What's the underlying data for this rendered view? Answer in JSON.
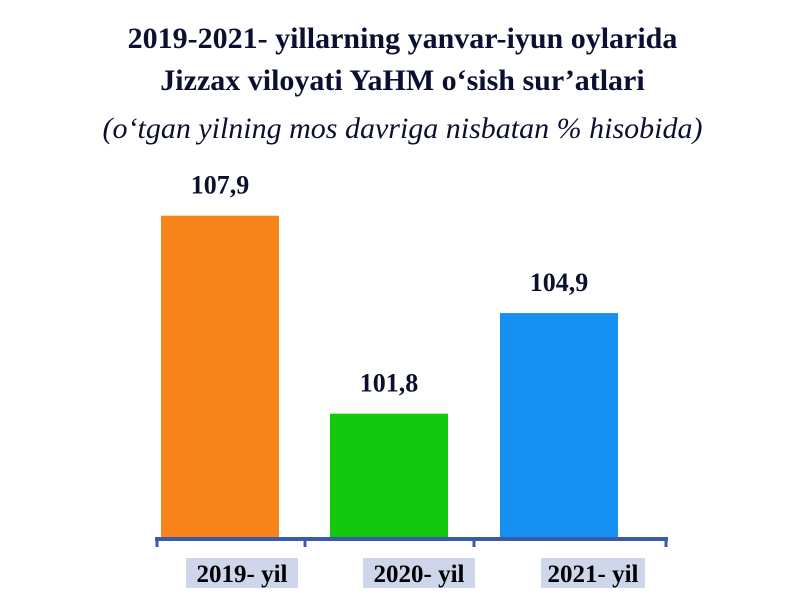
{
  "title_line_1": "2019-2021- yillarning yanvar-iyun oylarida",
  "title_line_2": "Jizzax viloyati YaHM o‘sish sur’atlari",
  "subtitle": "(o‘tgan yilning mos davriga nisbatan % hisobida)",
  "chart_data": {
    "type": "bar",
    "title": "2019-2021- yillarning yanvar-iyun oylarida Jizzax viloyati YaHM o‘sish sur’atlari",
    "subtitle": "(o‘tgan yilning mos davriga nisbatan % hisobida)",
    "categories": [
      "2019- yil",
      "2020- yil",
      "2021- yil"
    ],
    "values": [
      107.9,
      101.8,
      104.9
    ],
    "value_labels": [
      "107,9",
      "101,8",
      "104,9"
    ],
    "bar_colors": [
      "#f7851b",
      "#13c80f",
      "#1690f2"
    ],
    "axis_color": "#3a5ba8",
    "category_label_background": "#cdd6ea",
    "ylim": [
      98,
      109
    ],
    "grid": false,
    "legend": "none"
  }
}
